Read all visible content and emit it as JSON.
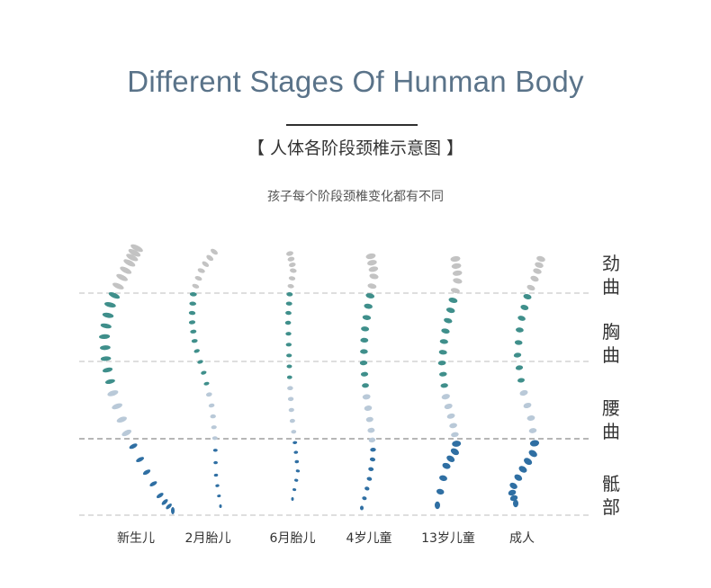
{
  "header": {
    "title": "Different Stages Of Hunman Body",
    "subtitle": "【 人体各阶段颈椎示意图 】",
    "caption": "孩子每个阶段颈椎变化都有不同"
  },
  "stages": [
    "新生儿",
    "2月胎儿",
    "6月胎儿",
    "4岁儿童",
    "13岁儿童",
    "成人"
  ],
  "regions": [
    "劲曲",
    "胸曲",
    "腰曲",
    "骶部"
  ],
  "colors": {
    "title": "#5a7389",
    "cervical": "#c3c3c3",
    "thoracic": "#3f8f8b",
    "lumbar": "#b9c9d8",
    "sacral": "#2f6fa3",
    "guide_line": "#bdbdbd"
  }
}
